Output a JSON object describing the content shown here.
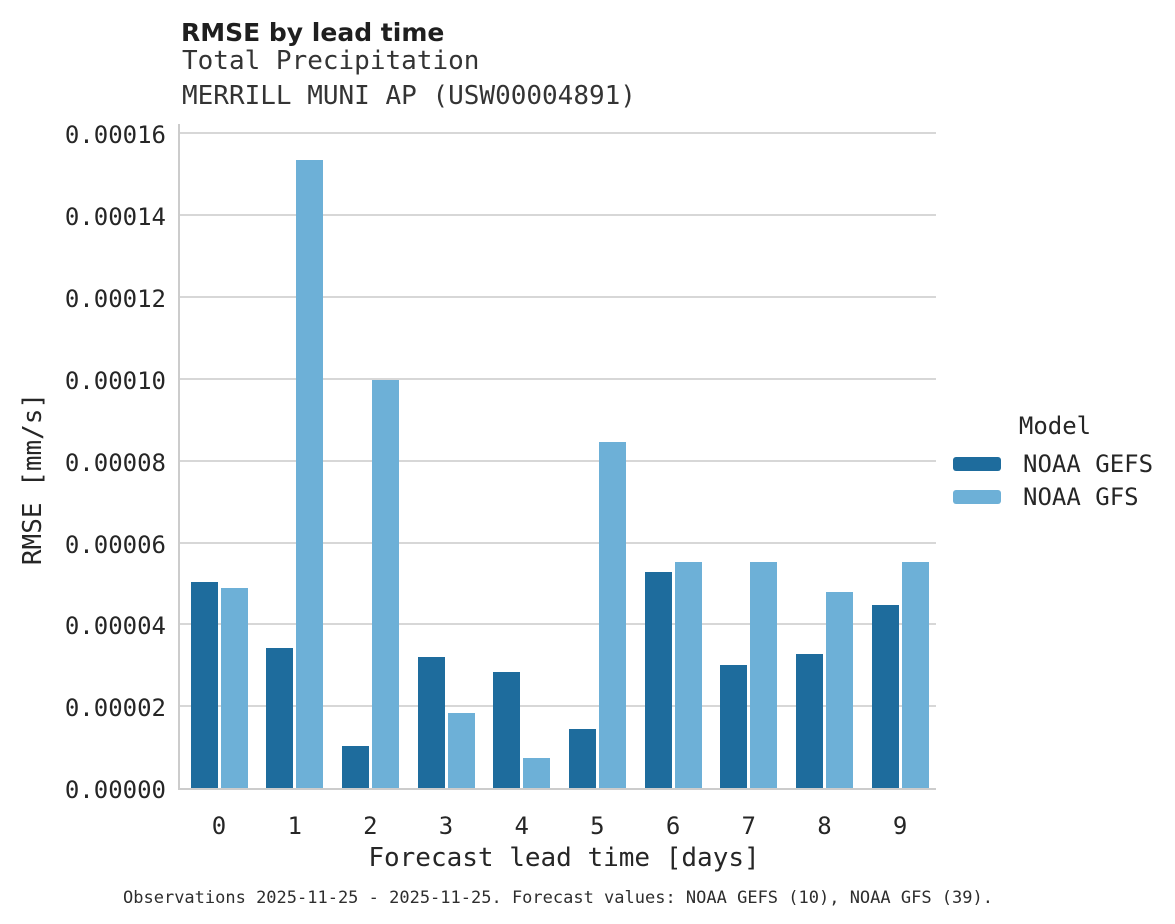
{
  "header": {
    "title": "RMSE by lead time",
    "subtitle1": "Total Precipitation",
    "subtitle2": "MERRILL MUNI AP (USW00004891)"
  },
  "legend": {
    "title": "Model",
    "entries": [
      {
        "label": "NOAA GEFS",
        "color": "#1e6c9d"
      },
      {
        "label": "NOAA GFS",
        "color": "#6db0d7"
      }
    ]
  },
  "footer": {
    "text": "Observations 2025-11-25 - 2025-11-25. Forecast values: NOAA GEFS (10), NOAA GFS (39)."
  },
  "chart_data": {
    "type": "bar",
    "title": "RMSE by lead time",
    "subtitle": "Total Precipitation",
    "station": "MERRILL MUNI AP (USW00004891)",
    "xlabel": "Forecast lead time [days]",
    "ylabel": "RMSE [mm/s]",
    "categories": [
      "0",
      "1",
      "2",
      "3",
      "4",
      "5",
      "6",
      "7",
      "8",
      "9"
    ],
    "series": [
      {
        "name": "NOAA GEFS",
        "color": "#1e6c9d",
        "values": [
          5.03e-05,
          3.41e-05,
          1.02e-05,
          3.19e-05,
          2.83e-05,
          1.44e-05,
          5.29e-05,
          3.01e-05,
          3.27e-05,
          4.47e-05
        ]
      },
      {
        "name": "NOAA GFS",
        "color": "#6db0d7",
        "values": [
          4.89e-05,
          0.0001535,
          9.98e-05,
          1.83e-05,
          7.3e-06,
          8.45e-05,
          5.52e-05,
          5.52e-05,
          4.8e-05,
          5.52e-05
        ]
      }
    ],
    "ylim": [
      0,
      0.0001628
    ],
    "yticks": {
      "step": 2e-05,
      "labels": [
        "0.00000",
        "0.00002",
        "0.00004",
        "0.00006",
        "0.00008",
        "0.00010",
        "0.00012",
        "0.00014",
        "0.00016"
      ]
    },
    "grid": "horizontal",
    "legend_position": "center-right",
    "legend_title": "Model"
  }
}
